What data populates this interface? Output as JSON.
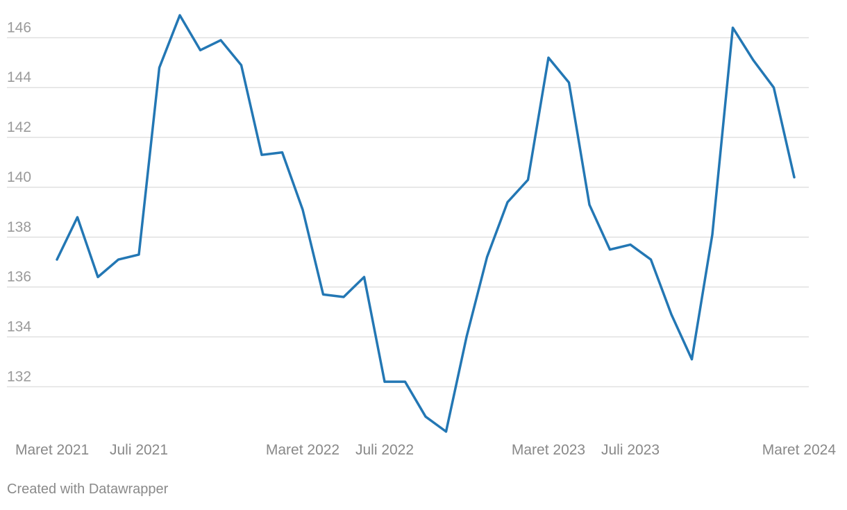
{
  "footer": {
    "credit": "Created with Datawrapper"
  },
  "colors": {
    "line": "#2377b4",
    "grid": "#e0e0e0",
    "tick_text": "#9a9a9a",
    "x_text": "#888888",
    "footer_text": "#8a8a8a"
  },
  "chart_data": {
    "type": "line",
    "title": "",
    "xlabel": "",
    "ylabel": "",
    "x": [
      "2021-03",
      "2021-04",
      "2021-05",
      "2021-06",
      "2021-07",
      "2021-08",
      "2021-09",
      "2021-10",
      "2021-11",
      "2021-12",
      "2022-01",
      "2022-02",
      "2022-03",
      "2022-04",
      "2022-05",
      "2022-06",
      "2022-07",
      "2022-08",
      "2022-09",
      "2022-10",
      "2022-11",
      "2022-12",
      "2023-01",
      "2023-02",
      "2023-03",
      "2023-04",
      "2023-05",
      "2023-06",
      "2023-07",
      "2023-08",
      "2023-09",
      "2023-10",
      "2023-11",
      "2023-12",
      "2024-01",
      "2024-02",
      "2024-03"
    ],
    "series": [
      {
        "values": [
          137.1,
          138.8,
          136.4,
          137.1,
          137.3,
          144.8,
          146.9,
          145.5,
          145.9,
          144.9,
          141.3,
          141.4,
          139.1,
          135.7,
          135.6,
          136.4,
          132.2,
          132.2,
          130.8,
          130.2,
          134.0,
          137.2,
          139.4,
          140.3,
          145.2,
          144.2,
          139.3,
          137.5,
          137.7,
          137.1,
          134.9,
          133.1,
          138.1,
          146.4,
          145.1,
          144.0,
          140.4
        ]
      }
    ],
    "x_ticks": [
      {
        "x": "2021-03",
        "label": "Maret 2021"
      },
      {
        "x": "2021-07",
        "label": "Juli 2021"
      },
      {
        "x": "2022-03",
        "label": "Maret 2022"
      },
      {
        "x": "2022-07",
        "label": "Juli 2022"
      },
      {
        "x": "2023-03",
        "label": "Maret 2023"
      },
      {
        "x": "2023-07",
        "label": "Juli 2023"
      },
      {
        "x": "2024-03",
        "label": "Maret 2024"
      }
    ],
    "y_ticks": [
      132,
      134,
      136,
      138,
      140,
      142,
      144,
      146
    ],
    "ylim": [
      130.2,
      146.9
    ],
    "grid": true,
    "legend": "none"
  }
}
